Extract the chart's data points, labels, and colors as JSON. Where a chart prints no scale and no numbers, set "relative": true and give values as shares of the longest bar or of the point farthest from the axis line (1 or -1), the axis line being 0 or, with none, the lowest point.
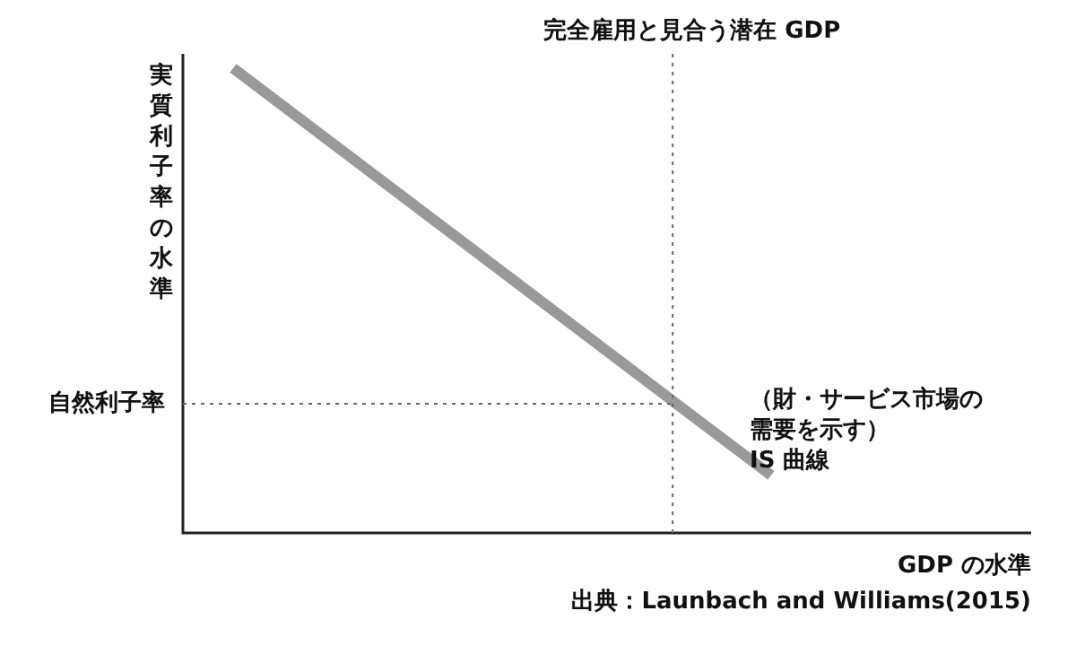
{
  "chart_data": {
    "type": "line",
    "relative": true,
    "categories": [
      null,
      null
    ],
    "marker": "none",
    "line_style": "solid",
    "series": [
      {
        "color": "#999999",
        "values": [
          1,
          0.124
        ]
      }
    ],
    "xlabel": "GDP の水準",
    "ylabel": "実質利子率の水準",
    "ref_lines": [
      {
        "axis": "y",
        "value": 0.278,
        "label": "自然利子率",
        "color": "#666666",
        "line_style": "dotted"
      }
    ],
    "annotations": [
      "（財・サービス市場の需要を示す）\nIS 曲線",
      "完全雇用と見合う潜在 GDP",
      "出典：Launbach and Williams(2015)"
    ]
  }
}
